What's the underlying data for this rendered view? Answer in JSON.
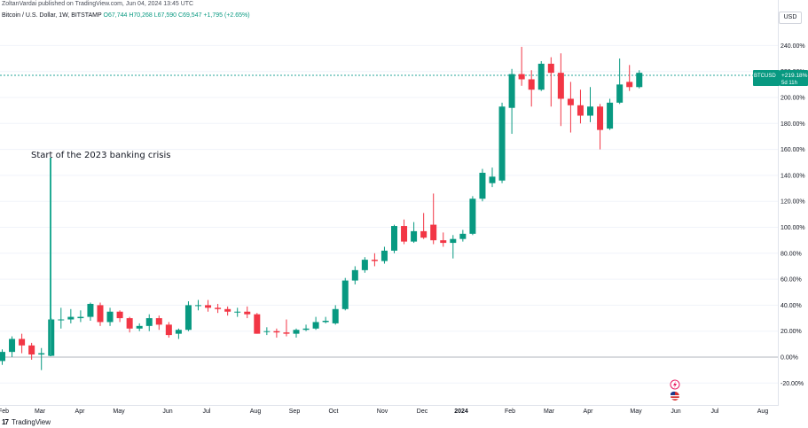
{
  "header": {
    "publisher_line": "ZoltanVardai published on TradingView.com, Jun 04, 2024 13:45 UTC",
    "symbol_line": "Bitcoin / U.S. Dollar, 1W, BITSTAMP",
    "open": "O67,744",
    "high": "H70,268",
    "low": "L67,590",
    "close": "C69,547",
    "change": "+1,795 (+2.65%)"
  },
  "currency": "USD",
  "footer": {
    "brand": "TradingView",
    "logo": "tradingview-logo-icon"
  },
  "price_marker": {
    "symbol": "BTCUSD",
    "value": "+219.18%",
    "countdown": "5d 11h"
  },
  "annotation": {
    "text": "Start of the 2023 banking crisis"
  },
  "event_icons": [
    "lightning-icon",
    "us-flag-icon"
  ],
  "colors": {
    "up": "#089981",
    "down": "#f23645",
    "annotation_line": "#22ab94",
    "marker_line": "#26a69a"
  },
  "chart_data": {
    "type": "candlestick",
    "y_unit": "%",
    "ylim": [
      -30,
      255
    ],
    "y_ticks": [
      "240.00%",
      "220.00%",
      "200.00%",
      "180.00%",
      "160.00%",
      "140.00%",
      "120.00%",
      "100.00%",
      "80.00%",
      "60.00%",
      "40.00%",
      "20.00%",
      "0.00%",
      "-20.00%"
    ],
    "x_labels": [
      "Feb",
      "Mar",
      "Apr",
      "May",
      "Jun",
      "Jul",
      "Aug",
      "Sep",
      "Oct",
      "Nov",
      "Dec",
      "2024",
      "Feb",
      "Mar",
      "Apr",
      "May",
      "Jun",
      "Jul",
      "Aug"
    ],
    "candles": [
      [
        -3,
        4,
        6,
        -6
      ],
      [
        4,
        14,
        16,
        0
      ],
      [
        14,
        9,
        18,
        3
      ],
      [
        9,
        2,
        11,
        -2
      ],
      [
        2,
        3,
        7,
        -10
      ],
      [
        1,
        29,
        30,
        1
      ],
      [
        29,
        29,
        38,
        22
      ],
      [
        29,
        31,
        37,
        26
      ],
      [
        30,
        31,
        36,
        27
      ],
      [
        31,
        41,
        42,
        28
      ],
      [
        40,
        27,
        42,
        24
      ],
      [
        27,
        35,
        38,
        24
      ],
      [
        35,
        30,
        36,
        27
      ],
      [
        30,
        22,
        31,
        19
      ],
      [
        22,
        24,
        26,
        20
      ],
      [
        24,
        30,
        33,
        20
      ],
      [
        30,
        25,
        32,
        21
      ],
      [
        25,
        17,
        27,
        15
      ],
      [
        18,
        21,
        22,
        14
      ],
      [
        21,
        40,
        43,
        20
      ],
      [
        40,
        40,
        44,
        36
      ],
      [
        40,
        38,
        44,
        35
      ],
      [
        38,
        37,
        41,
        34
      ],
      [
        37,
        35,
        39,
        32
      ],
      [
        35,
        35,
        38,
        31
      ],
      [
        35,
        33,
        39,
        30
      ],
      [
        33,
        18,
        34,
        18
      ],
      [
        20,
        20,
        23,
        17
      ],
      [
        20,
        19,
        22,
        15
      ],
      [
        19,
        18,
        29,
        16
      ],
      [
        18,
        21,
        22,
        15
      ],
      [
        21,
        22,
        25,
        20
      ],
      [
        22,
        27,
        31,
        21
      ],
      [
        27,
        28,
        31,
        26
      ],
      [
        26,
        37,
        40,
        25
      ],
      [
        37,
        59,
        61,
        36
      ],
      [
        59,
        67,
        70,
        56
      ],
      [
        67,
        75,
        77,
        65
      ],
      [
        75,
        74,
        80,
        70
      ],
      [
        74,
        82,
        85,
        72
      ],
      [
        82,
        101,
        102,
        80
      ],
      [
        101,
        89,
        106,
        87
      ],
      [
        89,
        97,
        104,
        88
      ],
      [
        97,
        92,
        111,
        91
      ],
      [
        102,
        90,
        126,
        87
      ],
      [
        90,
        88,
        96,
        85
      ],
      [
        88,
        91,
        94,
        76
      ],
      [
        91,
        95,
        98,
        89
      ],
      [
        95,
        122,
        124,
        94
      ],
      [
        122,
        142,
        145,
        120
      ],
      [
        134,
        139,
        146,
        131
      ],
      [
        136,
        193,
        196,
        134
      ],
      [
        192,
        218,
        222,
        172
      ],
      [
        218,
        214,
        239,
        209
      ],
      [
        214,
        206,
        221,
        193
      ],
      [
        206,
        226,
        228,
        205
      ],
      [
        226,
        219,
        231,
        193
      ],
      [
        219,
        199,
        234,
        178
      ],
      [
        199,
        194,
        212,
        173
      ],
      [
        194,
        186,
        206,
        180
      ],
      [
        186,
        193,
        208,
        181
      ],
      [
        193,
        175,
        195,
        160
      ],
      [
        176,
        196,
        199,
        175
      ],
      [
        196,
        210,
        230,
        195
      ],
      [
        212,
        208,
        225,
        205
      ],
      [
        208,
        219,
        221,
        207
      ]
    ]
  }
}
